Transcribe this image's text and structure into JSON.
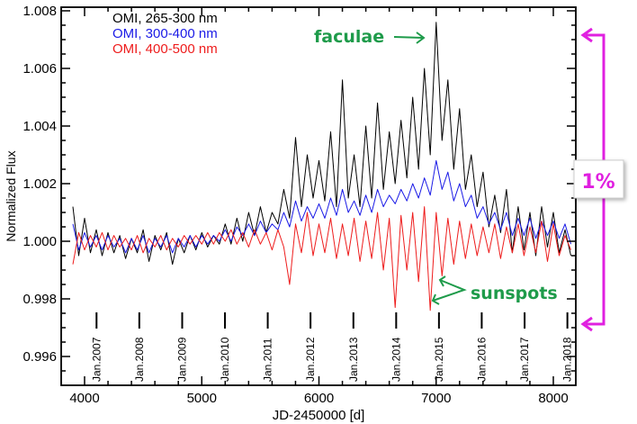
{
  "chart_data": {
    "type": "line",
    "xlabel": "JD-2450000 [d]",
    "ylabel": "Normalized Flux",
    "xlim": [
      3800,
      8190
    ],
    "ylim": [
      0.995,
      1.0082
    ],
    "x_ticks": [
      4000,
      5000,
      6000,
      7000,
      8000
    ],
    "y_ticks": [
      "0.996",
      "0.998",
      "1.000",
      "1.002",
      "1.004",
      "1.006",
      "1.008"
    ],
    "grid": false,
    "legend_placement": "top-left",
    "x": [
      3900,
      3950,
      4000,
      4050,
      4100,
      4150,
      4200,
      4250,
      4300,
      4350,
      4400,
      4450,
      4500,
      4550,
      4600,
      4650,
      4700,
      4750,
      4800,
      4850,
      4900,
      4950,
      5000,
      5050,
      5100,
      5150,
      5200,
      5250,
      5300,
      5350,
      5400,
      5450,
      5500,
      5550,
      5600,
      5650,
      5700,
      5750,
      5800,
      5850,
      5900,
      5950,
      6000,
      6050,
      6100,
      6150,
      6200,
      6250,
      6300,
      6350,
      6400,
      6450,
      6500,
      6550,
      6600,
      6650,
      6700,
      6750,
      6800,
      6850,
      6900,
      6950,
      7000,
      7050,
      7100,
      7150,
      7200,
      7250,
      7300,
      7350,
      7400,
      7450,
      7500,
      7550,
      7600,
      7650,
      7700,
      7750,
      7800,
      7850,
      7900,
      7950,
      8000,
      8050,
      8100,
      8150
    ],
    "series": [
      {
        "name": "OMI, 265-300 nm",
        "color": "#000000",
        "values": [
          1.0012,
          0.9995,
          1.0008,
          0.9996,
          1.0004,
          0.9995,
          1.0003,
          0.9996,
          1.0002,
          0.9994,
          1.0001,
          0.9996,
          1.0004,
          0.9993,
          1.0002,
          0.9997,
          1.0003,
          0.9992,
          1.0001,
          0.9996,
          1.0002,
          0.9997,
          1.0003,
          0.9998,
          1.0002,
          0.9999,
          1.0006,
          0.9999,
          1.0008,
          1.0,
          1.001,
          1.0002,
          1.0012,
          1.0003,
          1.001,
          1.0006,
          1.0018,
          1.0008,
          1.0036,
          1.0012,
          1.003,
          1.0015,
          1.0028,
          1.0014,
          1.0038,
          1.0012,
          1.0056,
          1.0015,
          1.003,
          1.0012,
          1.004,
          1.0015,
          1.0048,
          1.0018,
          1.0038,
          1.002,
          1.0042,
          1.0022,
          1.005,
          1.0025,
          1.006,
          1.003,
          1.0076,
          1.0035,
          1.0056,
          1.0025,
          1.0046,
          1.0018,
          1.003,
          1.0012,
          1.0024,
          1.0005,
          1.0016,
          1.0003,
          1.0018,
          0.9996,
          1.0012,
          0.9997,
          1.001,
          0.9995,
          1.0012,
          0.9998,
          1.001,
          0.9996,
          1.0004,
          0.9995
        ]
      },
      {
        "name": "OMI, 300-400 nm",
        "color": "#1a1ae6",
        "values": [
          1.0006,
          0.9997,
          1.0003,
          0.9998,
          1.0002,
          0.9997,
          1.0002,
          0.9998,
          1.0001,
          0.9996,
          1.0001,
          0.9997,
          1.0002,
          0.9996,
          1.0001,
          0.9998,
          1.0002,
          0.9996,
          1.0001,
          0.9998,
          1.0002,
          0.9998,
          1.0002,
          0.9999,
          1.0002,
          1.0,
          1.0004,
          1.0,
          1.0005,
          1.0002,
          1.0006,
          1.0002,
          1.0007,
          1.0003,
          1.0006,
          1.0004,
          1.001,
          1.0005,
          1.0014,
          1.0007,
          1.0012,
          1.0008,
          1.0013,
          1.0008,
          1.0015,
          1.0009,
          1.0018,
          1.001,
          1.0014,
          1.0009,
          1.0016,
          1.001,
          1.0018,
          1.0012,
          1.0016,
          1.0013,
          1.0018,
          1.0014,
          1.002,
          1.0015,
          1.0022,
          1.0016,
          1.0028,
          1.0018,
          1.0024,
          1.0014,
          1.002,
          1.0012,
          1.0016,
          1.0008,
          1.0012,
          1.0006,
          1.001,
          1.0004,
          1.001,
          1.0002,
          1.0008,
          1.0002,
          1.0008,
          1.0001,
          1.0007,
          1.0002,
          1.0007,
          1.0001,
          1.0006,
          0.9999
        ]
      },
      {
        "name": "OMI, 400-500 nm",
        "color": "#ee1c1c",
        "values": [
          0.9992,
          1.0003,
          0.9997,
          1.0002,
          0.9998,
          1.0003,
          0.9997,
          1.0002,
          0.9998,
          1.0001,
          0.9997,
          1.0002,
          0.9996,
          1.0001,
          0.9998,
          1.0002,
          0.9997,
          1.0001,
          0.9998,
          1.0002,
          0.9999,
          1.0002,
          0.9999,
          1.0003,
          0.9999,
          1.0003,
          1.0,
          1.0004,
          0.9999,
          1.0003,
          0.9998,
          1.0004,
          0.9999,
          1.0003,
          0.9997,
          1.0004,
          0.9998,
          0.9985,
          1.0006,
          0.9996,
          1.001,
          0.9995,
          1.0006,
          0.9996,
          1.0008,
          0.9994,
          1.0006,
          0.9995,
          1.0008,
          0.9993,
          1.0007,
          0.9994,
          1.001,
          0.999,
          1.0008,
          0.9977,
          1.0009,
          0.999,
          1.001,
          0.9986,
          1.0012,
          0.9976,
          1.001,
          0.9988,
          1.0008,
          0.9992,
          1.0007,
          0.9994,
          1.0006,
          0.9995,
          1.0005,
          0.9996,
          1.0006,
          0.9994,
          1.0005,
          0.9996,
          1.0006,
          0.9995,
          1.0005,
          0.9996,
          1.0007,
          0.9993,
          1.0006,
          0.9995,
          1.0002,
          0.9997
        ]
      }
    ],
    "year_markers": [
      {
        "label": "Jan.2007",
        "jd": 4102
      },
      {
        "label": "Jan.2008",
        "jd": 4467
      },
      {
        "label": "Jan.2009",
        "jd": 4833
      },
      {
        "label": "Jan.2010",
        "jd": 5198
      },
      {
        "label": "Jan.2011",
        "jd": 5563
      },
      {
        "label": "Jan.2012",
        "jd": 5928
      },
      {
        "label": "Jan.2013",
        "jd": 6294
      },
      {
        "label": "Jan.2014",
        "jd": 6659
      },
      {
        "label": "Jan.2015",
        "jd": 7024
      },
      {
        "label": "Jan.2016",
        "jd": 7389
      },
      {
        "label": "Jan.2017",
        "jd": 7755
      },
      {
        "label": "Jan.2018",
        "jd": 8120
      }
    ],
    "annotations": {
      "faculae": "faculae",
      "sunspots": "sunspots",
      "range": "1%",
      "annotation_color": "#1e9b4a",
      "range_color": "#e020e0"
    }
  }
}
